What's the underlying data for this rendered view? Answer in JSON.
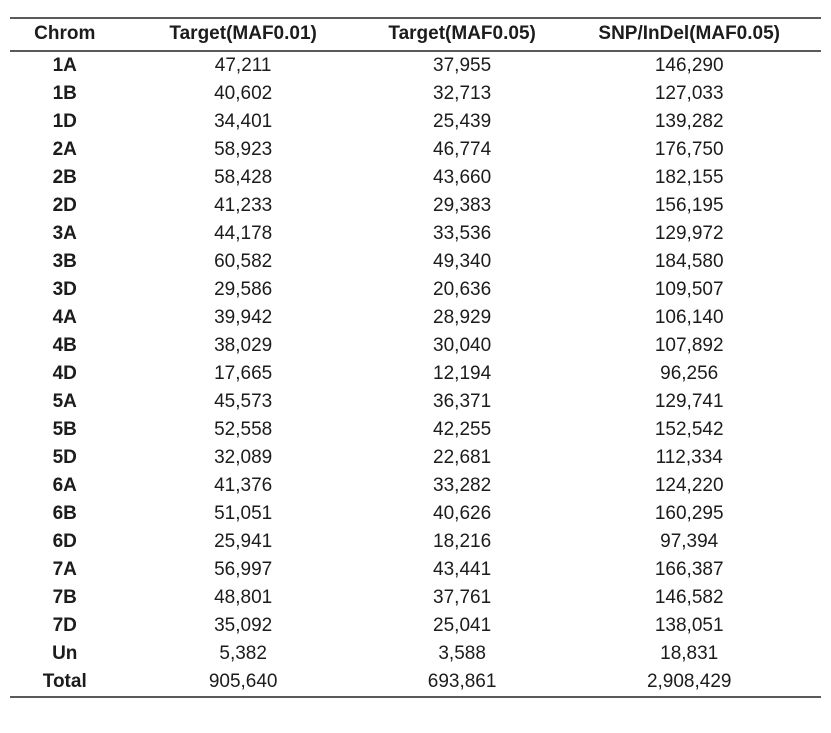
{
  "table": {
    "columns": [
      "Chrom",
      "Target(MAF0.01)",
      "Target(MAF0.05)",
      "SNP/InDel(MAF0.05)"
    ],
    "rows": [
      [
        "1A",
        "47,211",
        "37,955",
        "146,290"
      ],
      [
        "1B",
        "40,602",
        "32,713",
        "127,033"
      ],
      [
        "1D",
        "34,401",
        "25,439",
        "139,282"
      ],
      [
        "2A",
        "58,923",
        "46,774",
        "176,750"
      ],
      [
        "2B",
        "58,428",
        "43,660",
        "182,155"
      ],
      [
        "2D",
        "41,233",
        "29,383",
        "156,195"
      ],
      [
        "3A",
        "44,178",
        "33,536",
        "129,972"
      ],
      [
        "3B",
        "60,582",
        "49,340",
        "184,580"
      ],
      [
        "3D",
        "29,586",
        "20,636",
        "109,507"
      ],
      [
        "4A",
        "39,942",
        "28,929",
        "106,140"
      ],
      [
        "4B",
        "38,029",
        "30,040",
        "107,892"
      ],
      [
        "4D",
        "17,665",
        "12,194",
        "96,256"
      ],
      [
        "5A",
        "45,573",
        "36,371",
        "129,741"
      ],
      [
        "5B",
        "52,558",
        "42,255",
        "152,542"
      ],
      [
        "5D",
        "32,089",
        "22,681",
        "112,334"
      ],
      [
        "6A",
        "41,376",
        "33,282",
        "124,220"
      ],
      [
        "6B",
        "51,051",
        "40,626",
        "160,295"
      ],
      [
        "6D",
        "25,941",
        "18,216",
        "97,394"
      ],
      [
        "7A",
        "56,997",
        "43,441",
        "166,387"
      ],
      [
        "7B",
        "48,801",
        "37,761",
        "146,582"
      ],
      [
        "7D",
        "35,092",
        "25,041",
        "138,051"
      ],
      [
        "Un",
        "5,382",
        "3,588",
        "18,831"
      ],
      [
        "Total",
        "905,640",
        "693,861",
        "2,908,429"
      ]
    ]
  },
  "chart_data": {
    "type": "table",
    "title": "",
    "columns": [
      "Chrom",
      "Target(MAF0.01)",
      "Target(MAF0.05)",
      "SNP/InDel(MAF0.05)"
    ],
    "categories": [
      "1A",
      "1B",
      "1D",
      "2A",
      "2B",
      "2D",
      "3A",
      "3B",
      "3D",
      "4A",
      "4B",
      "4D",
      "5A",
      "5B",
      "5D",
      "6A",
      "6B",
      "6D",
      "7A",
      "7B",
      "7D",
      "Un",
      "Total"
    ],
    "series": [
      {
        "name": "Target(MAF0.01)",
        "values": [
          47211,
          40602,
          34401,
          58923,
          58428,
          41233,
          44178,
          60582,
          29586,
          39942,
          38029,
          17665,
          45573,
          52558,
          32089,
          41376,
          51051,
          25941,
          56997,
          48801,
          35092,
          5382,
          905640
        ]
      },
      {
        "name": "Target(MAF0.05)",
        "values": [
          37955,
          32713,
          25439,
          46774,
          43660,
          29383,
          33536,
          49340,
          20636,
          28929,
          30040,
          12194,
          36371,
          42255,
          22681,
          33282,
          40626,
          18216,
          43441,
          37761,
          25041,
          3588,
          693861
        ]
      },
      {
        "name": "SNP/InDel(MAF0.05)",
        "values": [
          146290,
          127033,
          139282,
          176750,
          182155,
          156195,
          129972,
          184580,
          109507,
          106140,
          107892,
          96256,
          129741,
          152542,
          112334,
          124220,
          160295,
          97394,
          166387,
          146582,
          138051,
          18831,
          2908429
        ]
      }
    ]
  },
  "colors": {
    "rule": "#5a5a5a",
    "text": "#1c1c1c",
    "background": "#ffffff"
  }
}
